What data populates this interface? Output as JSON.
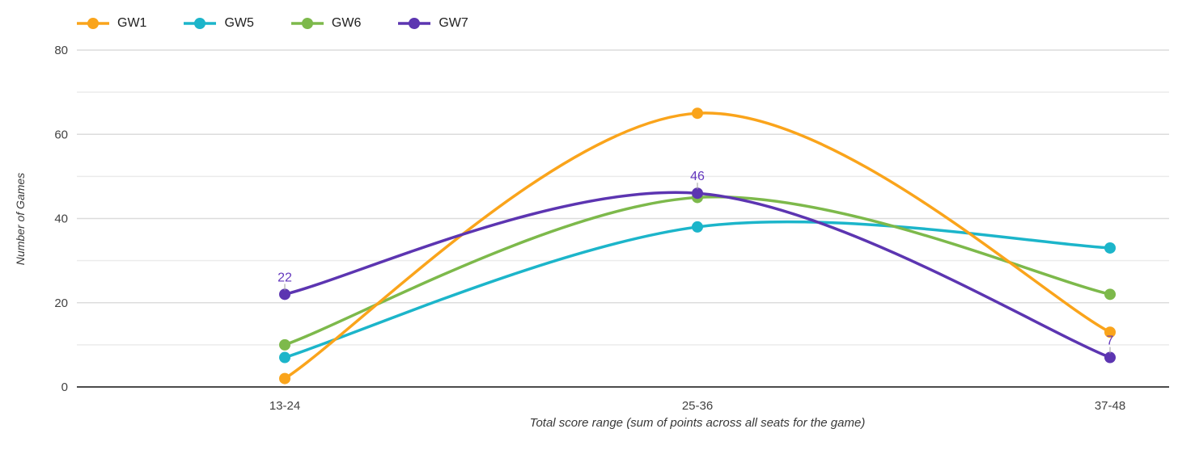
{
  "chart_data": {
    "type": "line",
    "smooth": true,
    "grid": true,
    "legend_position": "top-left",
    "categories": [
      "13-24",
      "25-36",
      "37-48"
    ],
    "series": [
      {
        "name": "GW1",
        "color": "#FAA41B",
        "values": [
          2,
          65,
          13
        ],
        "point_labels": false
      },
      {
        "name": "GW5",
        "color": "#1CB5CA",
        "values": [
          7,
          38,
          33
        ],
        "point_labels": false
      },
      {
        "name": "GW6",
        "color": "#7DB94B",
        "values": [
          10,
          45,
          22
        ],
        "point_labels": false
      },
      {
        "name": "GW7",
        "color": "#5C35B1",
        "values": [
          22,
          46,
          7
        ],
        "point_labels": true
      }
    ],
    "xlabel": "Total score range (sum of points across all seats for the game)",
    "ylabel": "Number of Games",
    "ylim": [
      0,
      80
    ],
    "yticks": [
      0,
      20,
      40,
      60,
      80
    ],
    "y_minor_step": 10,
    "colors": {
      "grid_major": "#dcdcdc",
      "grid_minor": "#ebebeb",
      "axis_line": "#333333",
      "tick_label": "#424242",
      "axis_title": "#383838",
      "legend_text": "#212121",
      "point_label": "#6438BE",
      "leader_line": "#9e9e9e"
    }
  }
}
